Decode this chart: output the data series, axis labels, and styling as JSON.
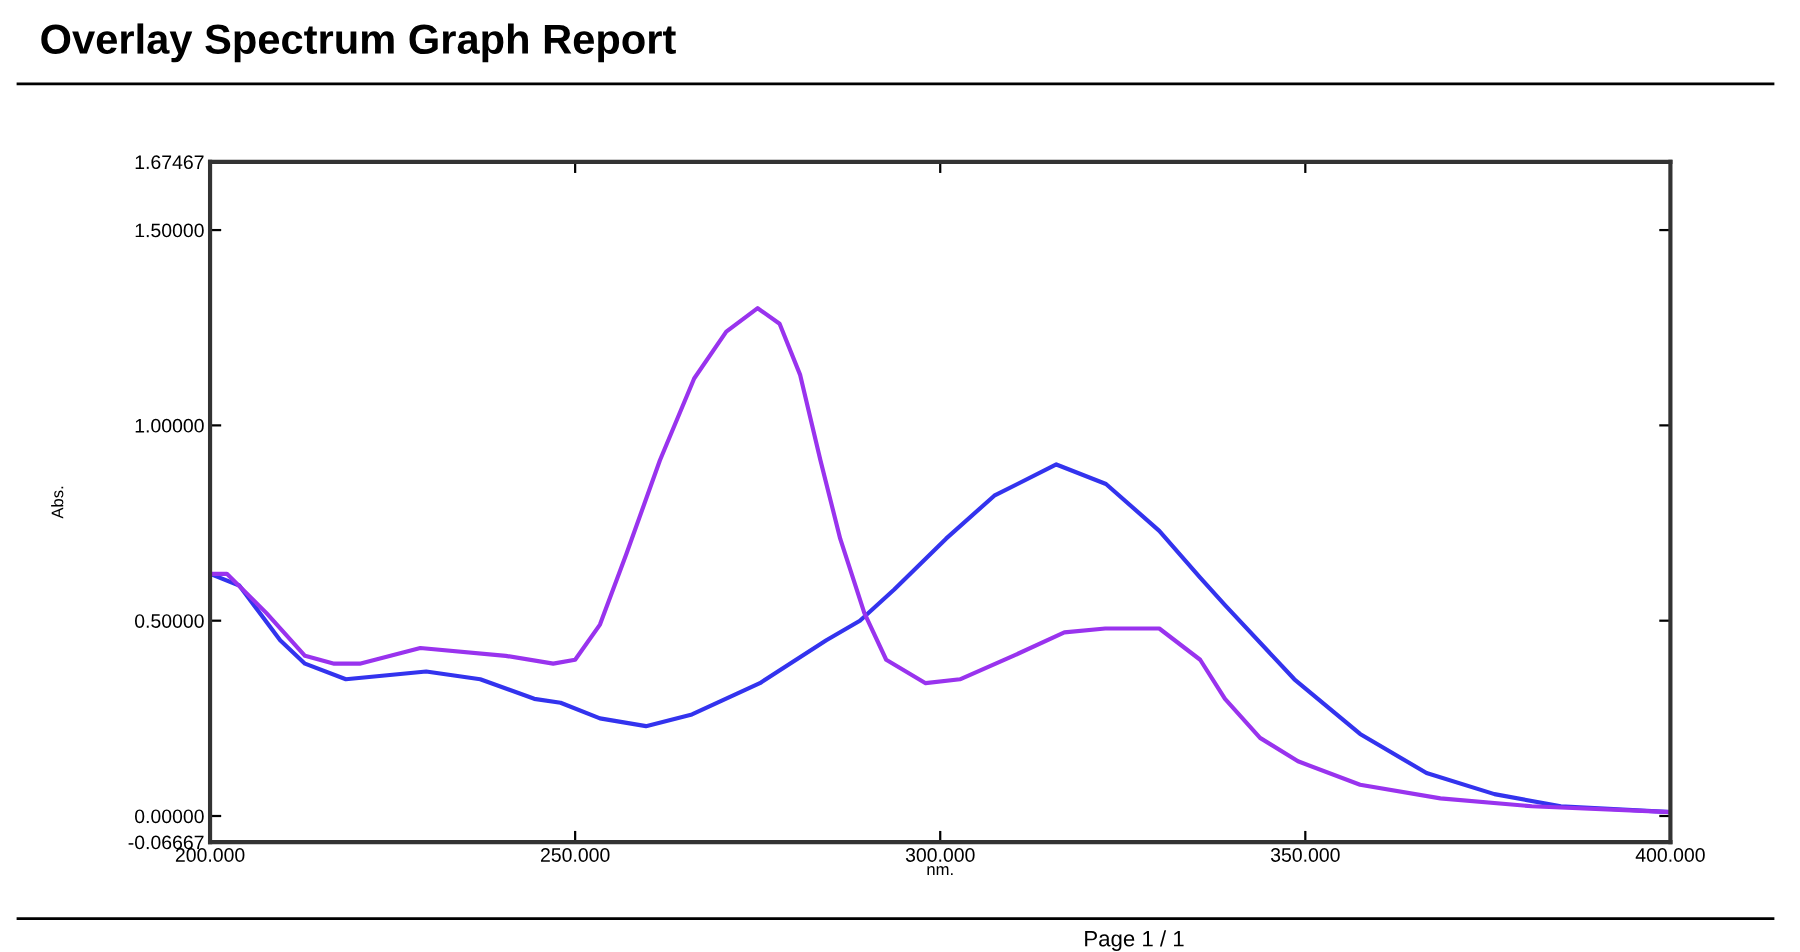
{
  "chart_data": {
    "type": "line",
    "title": "Overlay Spectrum Graph Report",
    "xlabel": "nm.",
    "ylabel": "Abs.",
    "annotations": [
      "Page 1 / 1"
    ],
    "xlim": [
      200,
      400
    ],
    "xticks": [
      {
        "value": 200,
        "label": "200.000"
      },
      {
        "value": 250,
        "label": "250.000"
      },
      {
        "value": 300,
        "label": "300.000"
      },
      {
        "value": 350,
        "label": "350.000"
      },
      {
        "value": 400,
        "label": "400.000"
      }
    ],
    "ylim": [
      -0.06667,
      1.67467
    ],
    "yticks": [
      {
        "value": -0.06667,
        "label": "-0.06667"
      },
      {
        "value": 0,
        "label": "0.00000"
      },
      {
        "value": 0.5,
        "label": "0.50000"
      },
      {
        "value": 1,
        "label": "1.00000"
      },
      {
        "value": 1.5,
        "label": "1.50000"
      },
      {
        "value": 1.67467,
        "label": "1.67467"
      }
    ],
    "grid": false,
    "legend": false,
    "marker": "none",
    "line_style": "solid",
    "series": [
      {
        "color": "#3333ee",
        "x": [
          200,
          204,
          209.6,
          213,
          218.6,
          229.6,
          237,
          244.4,
          248,
          253.4,
          259.7,
          266,
          275.3,
          284.4,
          289,
          293.7,
          300.8,
          307.4,
          315.9,
          322.7,
          330,
          335.6,
          339,
          348.5,
          357.5,
          366.6,
          375.9,
          385,
          400
        ],
        "values": [
          0.62,
          0.59,
          0.45,
          0.39,
          0.35,
          0.37,
          0.35,
          0.3,
          0.29,
          0.25,
          0.23,
          0.26,
          0.34,
          0.45,
          0.5,
          0.58,
          0.71,
          0.82,
          0.9,
          0.85,
          0.73,
          0.61,
          0.54,
          0.35,
          0.21,
          0.11,
          0.056,
          0.025,
          0.01
        ]
      },
      {
        "color": "#9933ee",
        "x": [
          200,
          202.3,
          207.7,
          213,
          217,
          220.5,
          228.8,
          240.5,
          247,
          250,
          253.4,
          257,
          261.6,
          266.3,
          270.7,
          275,
          278,
          280.8,
          283.6,
          286.3,
          289.6,
          292.6,
          298,
          302.7,
          310,
          317,
          322.6,
          330,
          335.6,
          339,
          343.8,
          349,
          357.5,
          368.5,
          381,
          400
        ],
        "values": [
          0.62,
          0.62,
          0.52,
          0.41,
          0.39,
          0.39,
          0.43,
          0.41,
          0.39,
          0.4,
          0.49,
          0.67,
          0.91,
          1.12,
          1.24,
          1.3,
          1.26,
          1.13,
          0.91,
          0.71,
          0.52,
          0.4,
          0.34,
          0.35,
          0.41,
          0.47,
          0.48,
          0.48,
          0.4,
          0.3,
          0.2,
          0.14,
          0.08,
          0.045,
          0.025,
          0.01
        ]
      }
    ]
  }
}
